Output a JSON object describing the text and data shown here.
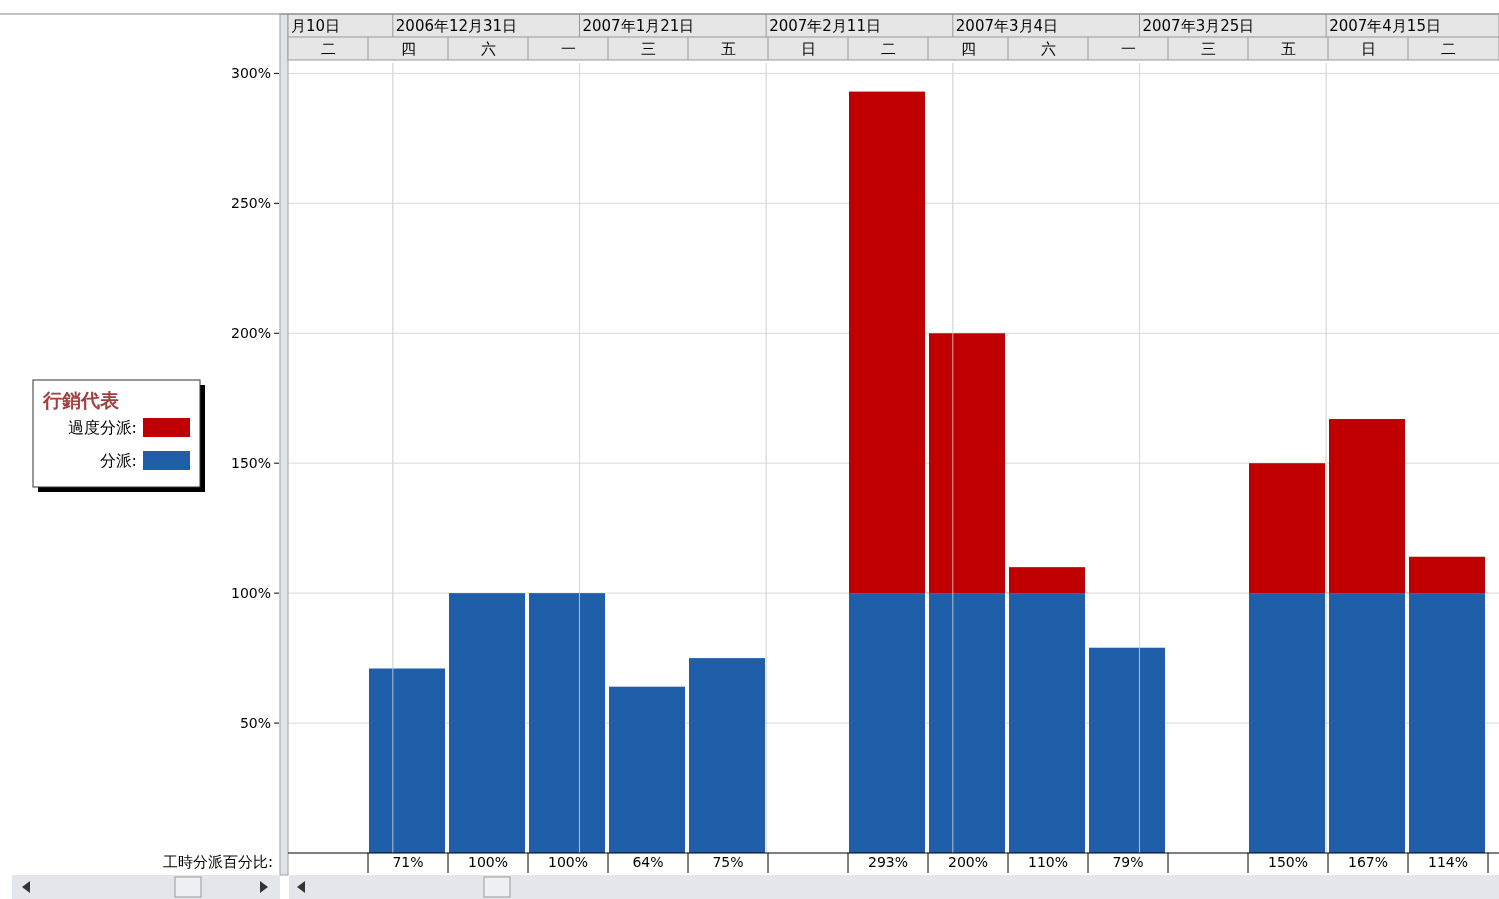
{
  "chart_data": {
    "type": "bar",
    "stacked": true,
    "legend_title": "行銷代表",
    "legend": "left",
    "categories": [
      "二",
      "四",
      "六",
      "一",
      "三",
      "五",
      "日",
      "二",
      "四",
      "六",
      "一",
      "三",
      "五",
      "日",
      "二"
    ],
    "series": [
      {
        "name": "分派:",
        "color": "#1f5ea8",
        "values": [
          null,
          71,
          100,
          100,
          64,
          75,
          null,
          100,
          100,
          100,
          79,
          null,
          100,
          100,
          100
        ]
      },
      {
        "name": "過度分派:",
        "color": "#c00000",
        "values": [
          null,
          null,
          null,
          null,
          null,
          null,
          null,
          193,
          100,
          10,
          null,
          null,
          50,
          67,
          14
        ]
      }
    ],
    "totals": [
      null,
      "71%",
      "100%",
      "100%",
      "64%",
      "75%",
      null,
      "293%",
      "200%",
      "110%",
      "79%",
      null,
      "150%",
      "167%",
      "114%"
    ],
    "ylim": [
      0,
      304
    ],
    "yticks": [
      {
        "value": 50,
        "label": "50%"
      },
      {
        "value": 100,
        "label": "100%"
      },
      {
        "value": 150,
        "label": "150%"
      },
      {
        "value": 200,
        "label": "200%"
      },
      {
        "value": 250,
        "label": "250%"
      },
      {
        "value": 300,
        "label": "300%"
      }
    ],
    "grid": true,
    "annotations": [
      "月10日",
      "2006年12月31日",
      "2007年1月21日",
      "2007年2月11日",
      "2007年3月4日",
      "2007年3月25日",
      "2007年4月15日",
      "工時分派百分比:"
    ]
  }
}
